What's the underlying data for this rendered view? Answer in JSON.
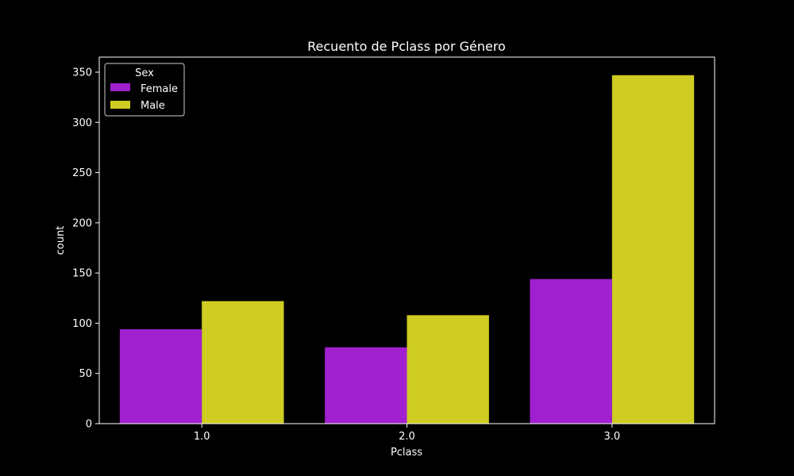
{
  "chart_data": {
    "type": "bar",
    "title": "Recuento de Pclass por Género",
    "xlabel": "Pclass",
    "ylabel": "count",
    "categories": [
      "1.0",
      "2.0",
      "3.0"
    ],
    "series": [
      {
        "name": "Female",
        "color": "#a020d0",
        "values": [
          94,
          76,
          144
        ]
      },
      {
        "name": "Male",
        "color": "#cfcc22",
        "values": [
          122,
          108,
          347
        ]
      }
    ],
    "yticks": [
      "0",
      "50",
      "100",
      "150",
      "200",
      "250",
      "300",
      "350"
    ],
    "ylim": [
      0,
      365
    ],
    "legend": {
      "title": "Sex",
      "position": "top-left"
    },
    "grid": false,
    "colors": {
      "background": "#000000",
      "text": "#ffffff",
      "axis": "#ffffff"
    }
  }
}
